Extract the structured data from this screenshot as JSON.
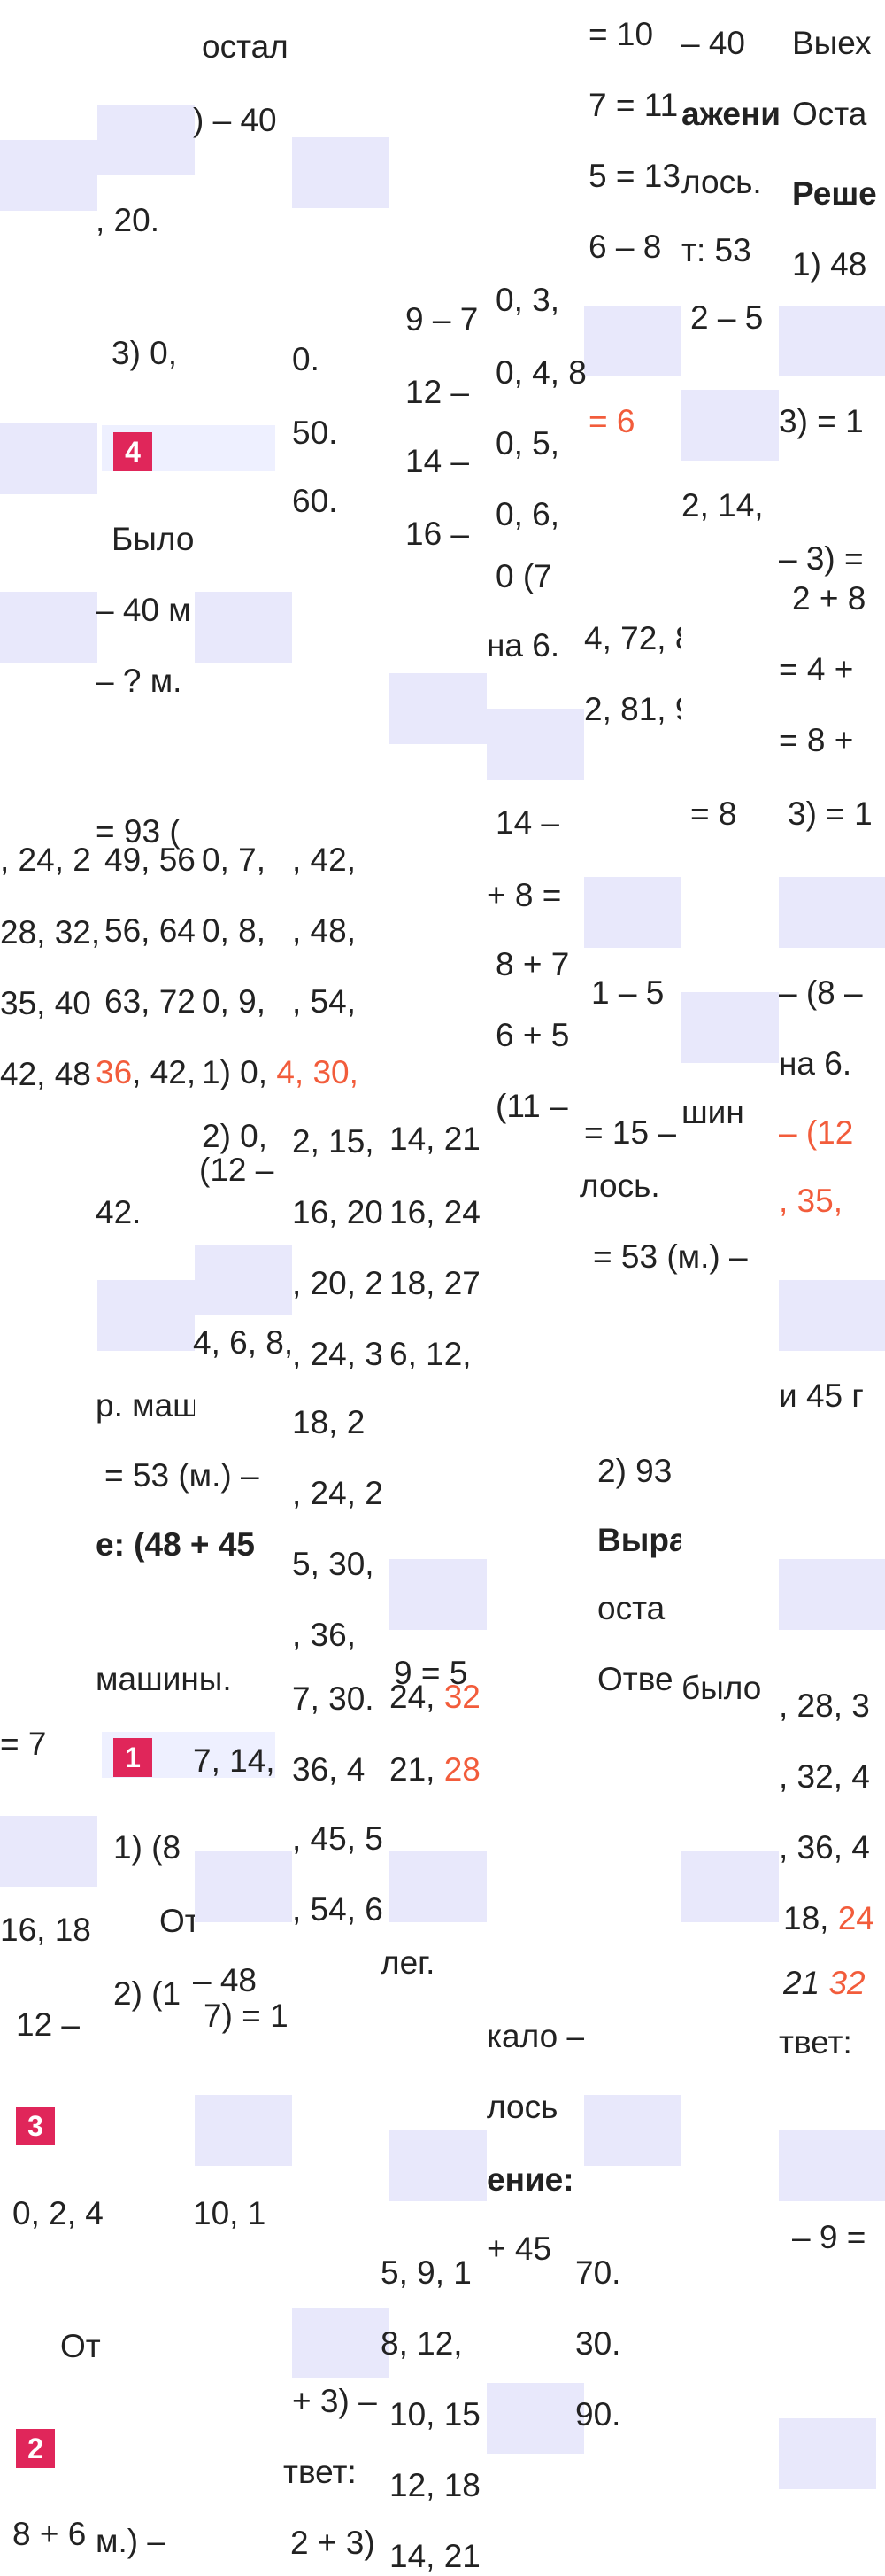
{
  "colors": {
    "highlight": "#f25c3b",
    "badge": "#e0265a",
    "tile": "#e8e8fb"
  },
  "badges": [
    "4",
    "1",
    "3",
    "2"
  ],
  "fragments": {
    "f01": "остал",
    "f02": ") – 40",
    "f03": ", 20.",
    "f04": "3) 0,",
    "f05": "Было",
    "f06": "– 40 м",
    "f07": "– ? м.",
    "f08": "= 93 (",
    "f09": ", 24, 2",
    "f10": "28, 32,",
    "f11": "35, 40",
    "f12": "42, 48",
    "f13": "42.",
    "f14": "р. маш",
    "f15": "= 53 (м.) –",
    "f16": "е: (48 + 45",
    "f17": "машины.",
    "f18": "= 7",
    "f19": "1) (8",
    "f20": "16, 18",
    "f21": "От",
    "f22": "2) (1",
    "f23": "12 –",
    "f24": "0, 2, 4",
    "f25": "От",
    "f26": "8 + 6",
    "f27": "м.) –",
    "f28": "49, 56",
    "f29": "56, 64",
    "f30": "63, 72",
    "f31": "36",
    "f32": ", 42,",
    "f33": "0, 7,",
    "f34": "0, 8,",
    "f35": "0, 9,",
    "f36": "1) 0,",
    "f37": "4",
    "f38": ", 30,",
    "f39": "2) 0,",
    "f40": "(12 –",
    "f41": "4, 6, 8,",
    "f42": "7, 14,",
    "f43": "– 48",
    "f44": "7) = 1",
    "f45": "10, 1",
    "f46": "+ 3) –",
    "f47": "твет:",
    "f48": "2 + 3)",
    "f49": ", 42,",
    "f50": ", 48,",
    "f51": ", 54,",
    "f52": "2, 15,",
    "f53": "16, 20",
    "f54": ", 20, 2",
    "f55": ", 24, 3",
    "f56": "18, 2",
    "f57": ", 24, 2",
    "f58": "5, 30,",
    "f59": ", 36,",
    "f60": "7, 30.",
    "f61": "36, 4",
    "f62": ", 45, 5",
    "f63": ", 54, 6",
    "f64": "5, 9, 1",
    "f65": "8, 12,",
    "f66": "10, 15",
    "f67": "12, 18",
    "f68": "14, 21",
    "f69": "0.",
    "f70": "50.",
    "f71": "60.",
    "f72": "9 – 7",
    "f73": "12 –",
    "f74": "14 –",
    "f75": "16 –",
    "f76": "14, 21",
    "f77": "16, 24",
    "f78": "18, 27",
    "f79": "6, 12,",
    "f80": "24,",
    "f81": "32",
    "f82": "21,",
    "f83": "28",
    "f84": "9 = 5",
    "f85": "лег.",
    "f86": "0, 3,",
    "f87": "0, 4, 8",
    "f88": "0, 5,",
    "f89": "0, 6,",
    "f90": "0 (7",
    "f91": "на 6.",
    "f92": "14 –",
    "f93": "+ 8 =",
    "f94": "8 + 7",
    "f95": "6 + 5",
    "f96": "(11 –",
    "f97": "кало –",
    "f98": "лось",
    "f99": "ение:",
    "f100": "+ 45",
    "f101": "= 10",
    "f102": "7 = 11",
    "f103": "5 = 13",
    "f104": "6 – 8",
    "f105": "= 6",
    "f106": "4, 72, 8",
    "f107": "2, 81, 9",
    "f108": "= 15 –",
    "f109": "лось.",
    "f110": "= 53 (м.) –",
    "f111": "2) 93",
    "f112": "Выра",
    "f113": "оста",
    "f114": "Отве",
    "f115": "70.",
    "f116": "30.",
    "f117": "90.",
    "f118": "– 40",
    "f119": "ажени",
    "f120": "лось.",
    "f121": "т: 53",
    "f122": "2 – 5",
    "f123": "2, 14,",
    "f124": "= 8",
    "f125": "1 – 5",
    "f126": "шин",
    "f127": "было",
    "f128": "Выех",
    "f129": "Оста",
    "f130": "Реше",
    "f131": "1) 48",
    "f132": "3) = 1",
    "f133": "– 3) =",
    "f134": "2 + 8",
    "f135": "= 4 +",
    "f136": "= 8 +",
    "f137": "3) = 1",
    "f138": "– (8 –",
    "f139": "на 6.",
    "f140": "– (12",
    "f141": ", 35,",
    "f142": "и 45 г",
    "f143": ", 28, 3",
    "f144": ", 32, 4",
    "f145": ", 36, 4",
    "f146": "18,",
    "f147": "24",
    "f148": "21",
    "f149": "32",
    "f150": "твет:",
    "f151": "– 9 ="
  }
}
